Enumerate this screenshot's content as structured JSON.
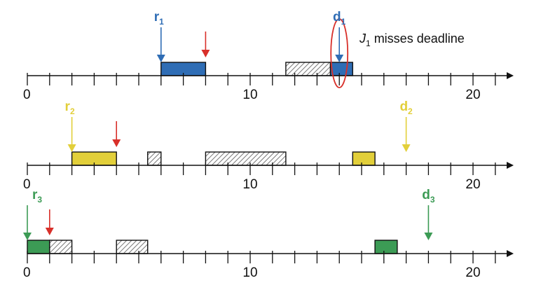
{
  "scale": {
    "min": 0,
    "max": 22,
    "major_labels": [
      0,
      10,
      20
    ]
  },
  "colors": {
    "blue": "#2f6db5",
    "yellow": "#e2cf3a",
    "green": "#3c9b55",
    "red": "#d8302a",
    "axis": "#111111",
    "hatch": "#777777"
  },
  "annotation": {
    "job": "J",
    "sub": "1",
    "text": "misses deadline"
  },
  "timelines": [
    {
      "id": "job-1",
      "color": "#2f6db5",
      "release": {
        "time": 6,
        "letter": "r",
        "sub": "1"
      },
      "deadline": {
        "time": 14,
        "letter": "d",
        "sub": "1"
      },
      "red_arrow_time": 8,
      "blocks": [
        {
          "start": 6,
          "end": 8,
          "type": "job"
        },
        {
          "start": 11.6,
          "end": 13.6,
          "type": "other"
        },
        {
          "start": 13.6,
          "end": 14.6,
          "type": "job"
        }
      ],
      "circle_at": 14
    },
    {
      "id": "job-2",
      "color": "#e2cf3a",
      "release": {
        "time": 2,
        "letter": "r",
        "sub": "2"
      },
      "deadline": {
        "time": 17,
        "letter": "d",
        "sub": "2"
      },
      "red_arrow_time": 4,
      "blocks": [
        {
          "start": 2,
          "end": 4,
          "type": "job"
        },
        {
          "start": 5.4,
          "end": 6,
          "type": "other"
        },
        {
          "start": 8,
          "end": 11.6,
          "type": "other"
        },
        {
          "start": 14.6,
          "end": 15.6,
          "type": "job"
        }
      ]
    },
    {
      "id": "job-3",
      "color": "#3c9b55",
      "release": {
        "time": 0,
        "letter": "r",
        "sub": "3"
      },
      "deadline": {
        "time": 18,
        "letter": "d",
        "sub": "3"
      },
      "red_arrow_time": 1,
      "blocks": [
        {
          "start": 0,
          "end": 1,
          "type": "job"
        },
        {
          "start": 1,
          "end": 2,
          "type": "other"
        },
        {
          "start": 4,
          "end": 5.4,
          "type": "other"
        },
        {
          "start": 15.6,
          "end": 16.6,
          "type": "job"
        }
      ]
    }
  ]
}
